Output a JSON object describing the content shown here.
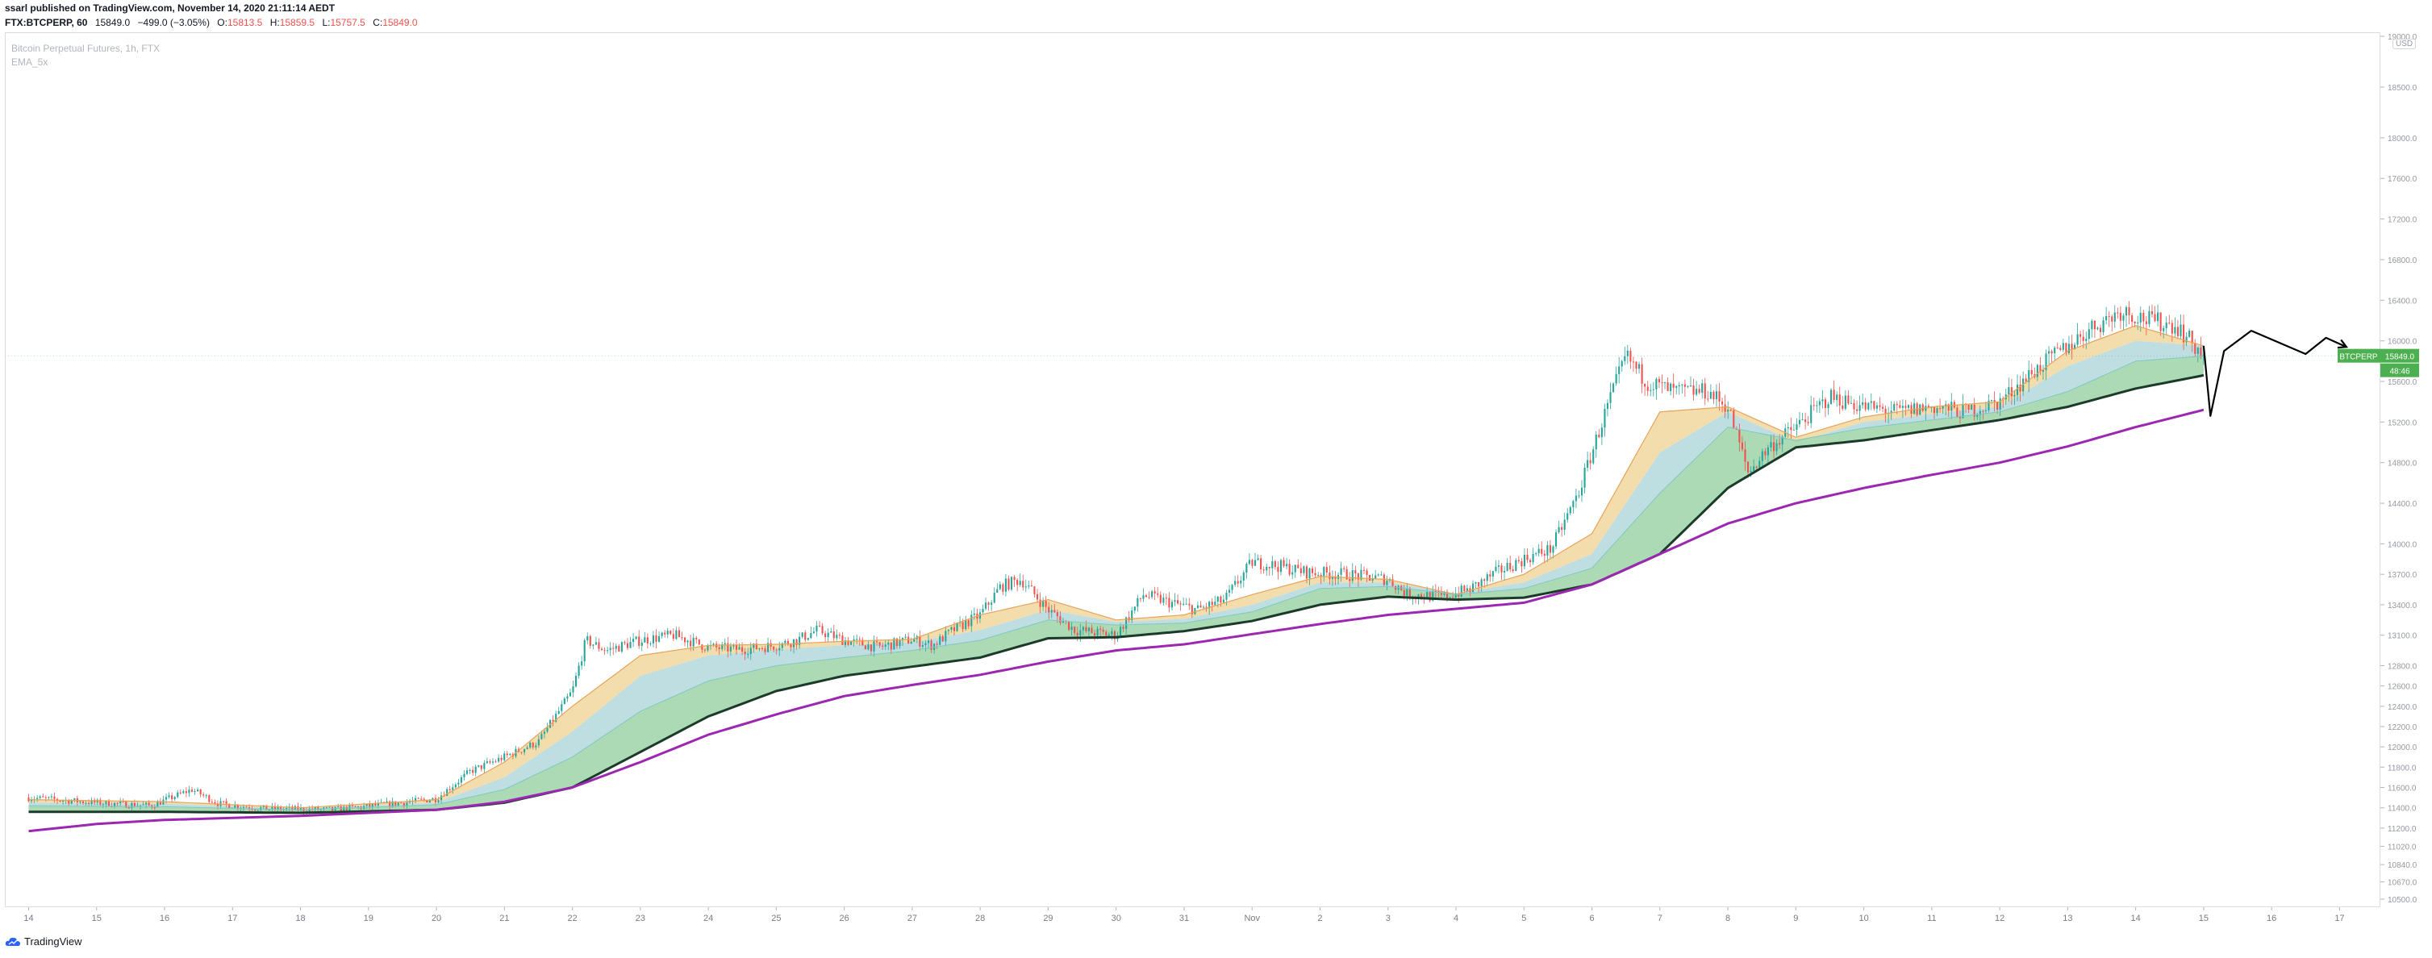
{
  "header": {
    "published": "ssarl published on TradingView.com, November 14, 2020 21:11:14 AEDT",
    "symbol": "FTX:BTCPERP, 60",
    "last": "15849.0",
    "change": "−499.0 (−3.05%)",
    "o_label": "O:",
    "o_value": "15813.5",
    "h_label": "H:",
    "h_value": "15859.5",
    "l_label": "L:",
    "l_value": "15757.5",
    "c_label": "C:",
    "c_value": "15849.0"
  },
  "legend": {
    "title": "Bitcoin Perpetual Futures, 1h, FTX",
    "indicator": "EMA_5x"
  },
  "footer": {
    "brand": "TradingView"
  },
  "colors": {
    "up": "#26a69a",
    "down": "#ef5350",
    "ema_fast_band": "#f3d9a4",
    "ema_mid_band": "#9ed4a8",
    "ema_mid_band_2": "#a9d3d8",
    "ema_slow": "#1b3a2a",
    "ema_long": "#9c27b0",
    "projection": "#000000",
    "price_tag_bg": "#4caf50"
  },
  "chart_data": {
    "type": "candlestick",
    "symbol": "BTCPERP",
    "interval": "1h",
    "currency": "USD",
    "current_price": 15849.0,
    "price_tag": "15849.0",
    "countdown": "48:46",
    "ylim": [
      10500,
      19000
    ],
    "y_ticks": [
      10500,
      10670,
      10840,
      11020,
      11200,
      11400,
      11600,
      11800,
      12000,
      12200,
      12400,
      12600,
      12800,
      13100,
      13400,
      13700,
      14000,
      14400,
      14800,
      15200,
      15600,
      16000,
      16400,
      16800,
      17200,
      17600,
      18000,
      18500,
      19000
    ],
    "y_tick_labels": [
      "10500.0",
      "10670.0",
      "10840.0",
      "11020.0",
      "11200.0",
      "11400.0",
      "11600.0",
      "11800.0",
      "12000.0",
      "12200.0",
      "12400.0",
      "12600.0",
      "12800.0",
      "13100.0",
      "13400.0",
      "13700.0",
      "14000.0",
      "14400.0",
      "14800.0",
      "15200.0",
      "15600.0",
      "16000.0",
      "16400.0",
      "16800.0",
      "17200.0",
      "17600.0",
      "18000.0",
      "18500.0",
      "19000.0"
    ],
    "x_labels": [
      "14",
      "15",
      "16",
      "17",
      "18",
      "19",
      "20",
      "21",
      "22",
      "23",
      "24",
      "25",
      "26",
      "27",
      "28",
      "29",
      "30",
      "31",
      "Nov",
      "2",
      "3",
      "4",
      "5",
      "6",
      "7",
      "8",
      "9",
      "10",
      "11",
      "12",
      "13",
      "14",
      "15",
      "16",
      "17"
    ],
    "x_label_days": [
      0,
      1,
      2,
      3,
      4,
      5,
      6,
      7,
      8,
      9,
      10,
      11,
      12,
      13,
      14,
      15,
      16,
      17,
      18,
      19,
      20,
      21,
      22,
      23,
      24,
      25,
      26,
      27,
      28,
      29,
      30,
      31,
      32,
      33,
      34
    ],
    "x_range_days": [
      -0.35,
      34.6
    ],
    "price_path": [
      [
        0,
        11500
      ],
      [
        1,
        11450
      ],
      [
        1.8,
        11420
      ],
      [
        2.4,
        11580
      ],
      [
        2.8,
        11440
      ],
      [
        3.5,
        11390
      ],
      [
        4.5,
        11380
      ],
      [
        5.5,
        11450
      ],
      [
        6,
        11490
      ],
      [
        6.5,
        11760
      ],
      [
        7,
        11900
      ],
      [
        7.5,
        12050
      ],
      [
        8,
        12550
      ],
      [
        8.2,
        13050
      ],
      [
        8.5,
        12950
      ],
      [
        9,
        13050
      ],
      [
        9.5,
        13100
      ],
      [
        10,
        12980
      ],
      [
        10.5,
        12960
      ],
      [
        11,
        13000
      ],
      [
        11.3,
        13050
      ],
      [
        11.6,
        13150
      ],
      [
        12,
        13050
      ],
      [
        12.5,
        12980
      ],
      [
        13,
        13060
      ],
      [
        13.3,
        13000
      ],
      [
        13.6,
        13150
      ],
      [
        14,
        13300
      ],
      [
        14.3,
        13580
      ],
      [
        14.6,
        13650
      ],
      [
        15,
        13350
      ],
      [
        15.4,
        13150
      ],
      [
        16,
        13100
      ],
      [
        16.4,
        13500
      ],
      [
        16.8,
        13420
      ],
      [
        17.2,
        13350
      ],
      [
        17.6,
        13450
      ],
      [
        18,
        13820
      ],
      [
        18.4,
        13780
      ],
      [
        18.8,
        13720
      ],
      [
        19.4,
        13700
      ],
      [
        20,
        13650
      ],
      [
        20.3,
        13500
      ],
      [
        20.8,
        13480
      ],
      [
        21.2,
        13550
      ],
      [
        21.6,
        13720
      ],
      [
        22,
        13850
      ],
      [
        22.4,
        13950
      ],
      [
        22.8,
        14500
      ],
      [
        23.2,
        15300
      ],
      [
        23.5,
        15850
      ],
      [
        23.8,
        15600
      ],
      [
        24.2,
        15500
      ],
      [
        24.7,
        15500
      ],
      [
        25,
        15350
      ],
      [
        25.3,
        14700
      ],
      [
        25.6,
        14950
      ],
      [
        26,
        15150
      ],
      [
        26.5,
        15450
      ],
      [
        27,
        15350
      ],
      [
        27.5,
        15300
      ],
      [
        28,
        15350
      ],
      [
        28.5,
        15300
      ],
      [
        29,
        15400
      ],
      [
        29.5,
        15700
      ],
      [
        30,
        15950
      ],
      [
        30.4,
        16150
      ],
      [
        30.8,
        16300
      ],
      [
        31.2,
        16200
      ],
      [
        31.6,
        16150
      ],
      [
        32,
        15849
      ]
    ],
    "series": [
      {
        "name": "EMA_5x",
        "x": [
          0,
          2,
          4,
          6,
          7,
          8,
          9,
          10,
          11,
          12,
          13,
          14,
          15,
          16,
          17,
          18,
          19,
          20,
          21,
          22,
          23,
          24,
          25,
          26,
          27,
          28,
          29,
          30,
          31,
          32
        ],
        "ema1": [
          11480,
          11460,
          11400,
          11480,
          11850,
          12400,
          12900,
          13000,
          13010,
          13040,
          13060,
          13300,
          13450,
          13250,
          13300,
          13500,
          13680,
          13650,
          13500,
          13700,
          14100,
          15300,
          15350,
          15050,
          15250,
          15350,
          15400,
          15900,
          16150,
          15950
        ],
        "ema2": [
          11450,
          11440,
          11390,
          11450,
          11700,
          12150,
          12700,
          12900,
          12960,
          13000,
          13030,
          13150,
          13350,
          13230,
          13260,
          13400,
          13620,
          13620,
          13510,
          13620,
          13900,
          14900,
          15300,
          15000,
          15200,
          15280,
          15350,
          15750,
          16000,
          15950
        ],
        "ema3": [
          11420,
          11410,
          11380,
          11430,
          11580,
          11900,
          12350,
          12650,
          12800,
          12880,
          12950,
          13050,
          13250,
          13200,
          13220,
          13330,
          13560,
          13580,
          13500,
          13560,
          13760,
          14500,
          15150,
          15020,
          15140,
          15220,
          15300,
          15500,
          15800,
          15850
        ],
        "ema4": [
          11400,
          11390,
          11370,
          11410,
          11500,
          11750,
          12150,
          12500,
          12700,
          12800,
          12880,
          12980,
          13180,
          13180,
          13190,
          13290,
          13500,
          13550,
          13490,
          13520,
          13650,
          14200,
          14950,
          15000,
          15100,
          15180,
          15250,
          15420,
          15650,
          15750
        ],
        "ema5": [
          11360,
          11360,
          11350,
          11380,
          11450,
          11600,
          11950,
          12300,
          12550,
          12700,
          12790,
          12880,
          13070,
          13080,
          13140,
          13240,
          13400,
          13480,
          13450,
          13470,
          13600,
          13900,
          14550,
          14950,
          15020,
          15120,
          15220,
          15350,
          15530,
          15660
        ]
      },
      {
        "name": "EMA_long",
        "x": [
          0,
          1,
          2,
          3,
          4,
          5,
          6,
          7,
          8,
          9,
          10,
          11,
          12,
          13,
          14,
          15,
          16,
          17,
          18,
          19,
          20,
          21,
          22,
          23,
          24,
          25,
          26,
          27,
          28,
          29,
          30,
          31,
          32
        ],
        "values": [
          11170,
          11240,
          11280,
          11300,
          11320,
          11350,
          11380,
          11460,
          11600,
          11850,
          12120,
          12320,
          12500,
          12610,
          12710,
          12840,
          12950,
          13010,
          13110,
          13210,
          13300,
          13360,
          13420,
          13600,
          13900,
          14200,
          14400,
          14550,
          14680,
          14800,
          14960,
          15150,
          15320
        ]
      }
    ],
    "projection": [
      [
        32,
        15950
      ],
      [
        32.1,
        15260
      ],
      [
        32.3,
        15900
      ],
      [
        32.7,
        16100
      ],
      [
        33.5,
        15870
      ],
      [
        33.8,
        16030
      ],
      [
        34.1,
        15940
      ]
    ]
  }
}
